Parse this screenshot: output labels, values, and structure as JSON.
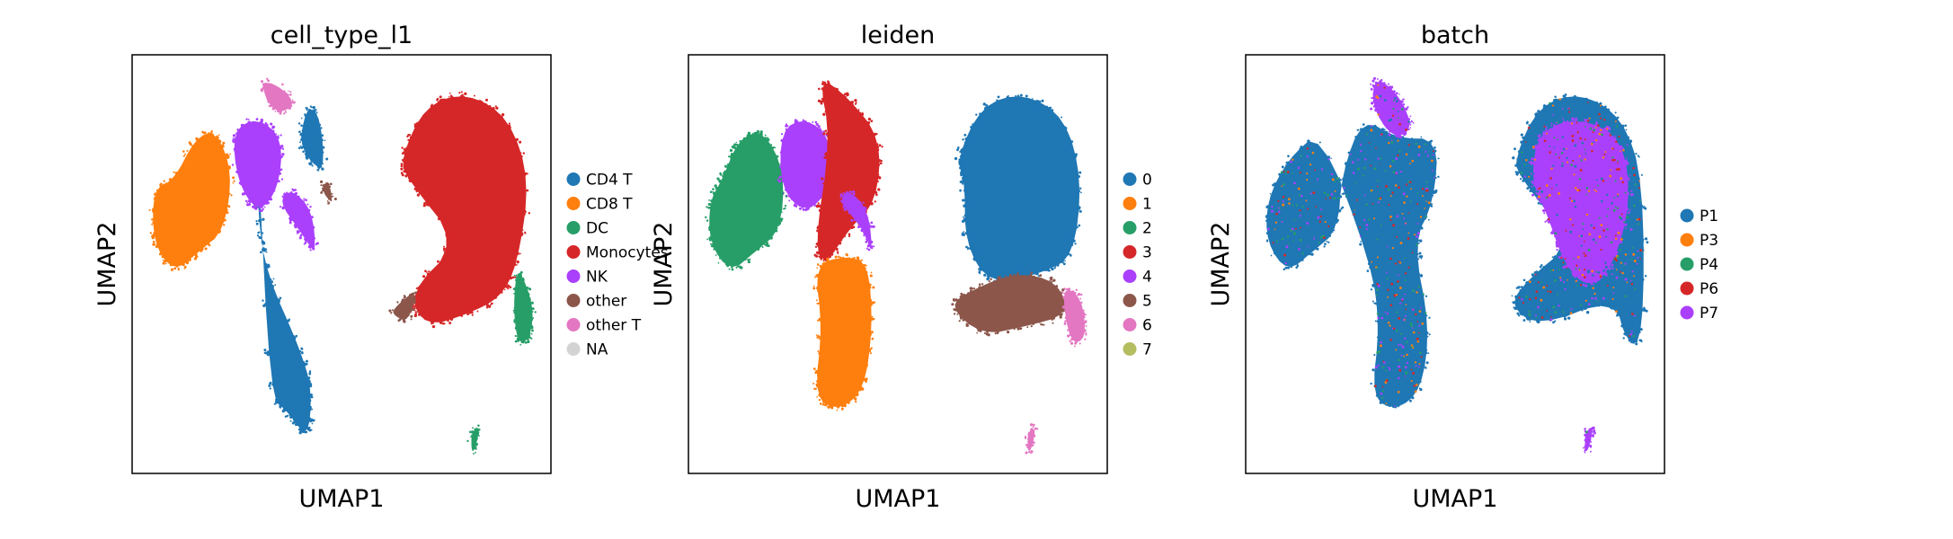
{
  "chart_data": [
    {
      "type": "scatter",
      "title": "cell_type_l1",
      "xlabel": "UMAP1",
      "ylabel": "UMAP2",
      "legend_position": "right",
      "ticks": "none",
      "grid": false,
      "legend": [
        {
          "label": "CD4 T",
          "color": "#1f77b4"
        },
        {
          "label": "CD8 T",
          "color": "#ff7f0e"
        },
        {
          "label": "DC",
          "color": "#279e68"
        },
        {
          "label": "Monocytes",
          "color": "#d62728"
        },
        {
          "label": "NK",
          "color": "#aa40fc"
        },
        {
          "label": "other",
          "color": "#8c564b"
        },
        {
          "label": "other T",
          "color": "#e377c2"
        },
        {
          "label": "NA",
          "color": "#d3d3d3"
        }
      ],
      "clusters": [
        {
          "color": "#1f77b4",
          "points": [
            [
              0.3,
              0.78
            ],
            [
              0.3,
              0.62
            ],
            [
              0.32,
              0.48
            ],
            [
              0.4,
              0.3
            ],
            [
              0.43,
              0.2
            ],
            [
              0.42,
              0.08
            ],
            [
              0.37,
              0.15
            ],
            [
              0.33,
              0.18
            ]
          ]
        },
        {
          "color": "#1f77b4",
          "points": [
            [
              0.42,
              0.75
            ],
            [
              0.46,
              0.72
            ],
            [
              0.45,
              0.85
            ],
            [
              0.42,
              0.88
            ],
            [
              0.4,
              0.8
            ]
          ]
        },
        {
          "color": "#ff7f0e",
          "points": [
            [
              0.05,
              0.55
            ],
            [
              0.1,
              0.48
            ],
            [
              0.16,
              0.53
            ],
            [
              0.22,
              0.58
            ],
            [
              0.24,
              0.72
            ],
            [
              0.2,
              0.82
            ],
            [
              0.15,
              0.8
            ],
            [
              0.1,
              0.7
            ],
            [
              0.05,
              0.68
            ]
          ]
        },
        {
          "color": "#aa40fc",
          "points": [
            [
              0.24,
              0.82
            ],
            [
              0.3,
              0.85
            ],
            [
              0.36,
              0.8
            ],
            [
              0.35,
              0.68
            ],
            [
              0.3,
              0.62
            ],
            [
              0.25,
              0.7
            ]
          ]
        },
        {
          "color": "#aa40fc",
          "points": [
            [
              0.35,
              0.65
            ],
            [
              0.4,
              0.58
            ],
            [
              0.44,
              0.52
            ],
            [
              0.43,
              0.63
            ],
            [
              0.38,
              0.68
            ]
          ]
        },
        {
          "color": "#e377c2",
          "points": [
            [
              0.31,
              0.94
            ],
            [
              0.36,
              0.92
            ],
            [
              0.39,
              0.88
            ],
            [
              0.35,
              0.86
            ],
            [
              0.32,
              0.89
            ]
          ]
        },
        {
          "color": "#8c564b",
          "points": [
            [
              0.45,
              0.68
            ],
            [
              0.48,
              0.64
            ],
            [
              0.47,
              0.7
            ]
          ]
        },
        {
          "color": "#d62728",
          "points": [
            [
              0.64,
              0.75
            ],
            [
              0.7,
              0.88
            ],
            [
              0.8,
              0.91
            ],
            [
              0.9,
              0.85
            ],
            [
              0.95,
              0.7
            ],
            [
              0.92,
              0.5
            ],
            [
              0.88,
              0.42
            ],
            [
              0.8,
              0.38
            ],
            [
              0.7,
              0.35
            ],
            [
              0.66,
              0.43
            ],
            [
              0.78,
              0.55
            ],
            [
              0.66,
              0.7
            ]
          ]
        },
        {
          "color": "#8c564b",
          "points": [
            [
              0.63,
              0.4
            ],
            [
              0.68,
              0.44
            ],
            [
              0.66,
              0.36
            ],
            [
              0.62,
              0.38
            ]
          ]
        },
        {
          "color": "#279e68",
          "points": [
            [
              0.92,
              0.5
            ],
            [
              0.96,
              0.4
            ],
            [
              0.95,
              0.32
            ],
            [
              0.92,
              0.31
            ],
            [
              0.91,
              0.4
            ]
          ]
        },
        {
          "color": "#279e68",
          "points": [
            [
              0.81,
              0.1
            ],
            [
              0.83,
              0.11
            ],
            [
              0.82,
              0.06
            ],
            [
              0.81,
              0.05
            ]
          ]
        }
      ]
    },
    {
      "type": "scatter",
      "title": "leiden",
      "xlabel": "UMAP1",
      "ylabel": "UMAP2",
      "legend_position": "right",
      "ticks": "none",
      "grid": false,
      "legend": [
        {
          "label": "0",
          "color": "#1f77b4"
        },
        {
          "label": "1",
          "color": "#ff7f0e"
        },
        {
          "label": "2",
          "color": "#279e68"
        },
        {
          "label": "3",
          "color": "#d62728"
        },
        {
          "label": "4",
          "color": "#aa40fc"
        },
        {
          "label": "5",
          "color": "#8c564b"
        },
        {
          "label": "6",
          "color": "#e377c2"
        },
        {
          "label": "7",
          "color": "#b5bd61"
        }
      ],
      "clusters": [
        {
          "color": "#1f77b4",
          "points": [
            [
              0.64,
              0.75
            ],
            [
              0.7,
              0.88
            ],
            [
              0.8,
              0.91
            ],
            [
              0.9,
              0.85
            ],
            [
              0.94,
              0.7
            ],
            [
              0.92,
              0.52
            ],
            [
              0.85,
              0.48
            ],
            [
              0.72,
              0.45
            ],
            [
              0.66,
              0.55
            ],
            [
              0.66,
              0.7
            ]
          ]
        },
        {
          "color": "#8c564b",
          "points": [
            [
              0.62,
              0.4
            ],
            [
              0.68,
              0.44
            ],
            [
              0.78,
              0.48
            ],
            [
              0.88,
              0.46
            ],
            [
              0.91,
              0.38
            ],
            [
              0.8,
              0.35
            ],
            [
              0.7,
              0.33
            ]
          ]
        },
        {
          "color": "#e377c2",
          "points": [
            [
              0.89,
              0.45
            ],
            [
              0.94,
              0.42
            ],
            [
              0.95,
              0.32
            ],
            [
              0.91,
              0.31
            ]
          ]
        },
        {
          "color": "#e377c2",
          "points": [
            [
              0.81,
              0.1
            ],
            [
              0.83,
              0.11
            ],
            [
              0.82,
              0.06
            ],
            [
              0.81,
              0.05
            ]
          ]
        },
        {
          "color": "#279e68",
          "points": [
            [
              0.05,
              0.55
            ],
            [
              0.1,
              0.48
            ],
            [
              0.16,
              0.53
            ],
            [
              0.22,
              0.58
            ],
            [
              0.23,
              0.72
            ],
            [
              0.18,
              0.82
            ],
            [
              0.12,
              0.8
            ],
            [
              0.08,
              0.7
            ],
            [
              0.05,
              0.65
            ]
          ]
        },
        {
          "color": "#aa40fc",
          "points": [
            [
              0.22,
              0.82
            ],
            [
              0.28,
              0.85
            ],
            [
              0.34,
              0.8
            ],
            [
              0.34,
              0.68
            ],
            [
              0.28,
              0.62
            ],
            [
              0.22,
              0.68
            ]
          ]
        },
        {
          "color": "#d62728",
          "points": [
            [
              0.31,
              0.95
            ],
            [
              0.38,
              0.9
            ],
            [
              0.46,
              0.8
            ],
            [
              0.45,
              0.65
            ],
            [
              0.38,
              0.58
            ],
            [
              0.33,
              0.5
            ],
            [
              0.3,
              0.54
            ],
            [
              0.34,
              0.8
            ]
          ]
        },
        {
          "color": "#aa40fc",
          "points": [
            [
              0.36,
              0.65
            ],
            [
              0.42,
              0.58
            ],
            [
              0.44,
              0.52
            ],
            [
              0.43,
              0.63
            ],
            [
              0.38,
              0.68
            ]
          ]
        },
        {
          "color": "#ff7f0e",
          "points": [
            [
              0.3,
              0.5
            ],
            [
              0.32,
              0.35
            ],
            [
              0.3,
              0.18
            ],
            [
              0.36,
              0.15
            ],
            [
              0.42,
              0.2
            ],
            [
              0.44,
              0.35
            ],
            [
              0.43,
              0.5
            ],
            [
              0.38,
              0.52
            ]
          ]
        }
      ]
    },
    {
      "type": "scatter",
      "title": "batch",
      "xlabel": "UMAP1",
      "ylabel": "UMAP2",
      "legend_position": "right",
      "ticks": "none",
      "grid": false,
      "legend": [
        {
          "label": "P1",
          "color": "#1f77b4"
        },
        {
          "label": "P3",
          "color": "#ff7f0e"
        },
        {
          "label": "P4",
          "color": "#279e68"
        },
        {
          "label": "P6",
          "color": "#d62728"
        },
        {
          "label": "P7",
          "color": "#aa40fc"
        }
      ],
      "clusters": [
        {
          "color": "#1f77b4",
          "points": [
            [
              0.05,
              0.55
            ],
            [
              0.1,
              0.48
            ],
            [
              0.16,
              0.53
            ],
            [
              0.22,
              0.58
            ],
            [
              0.23,
              0.72
            ],
            [
              0.28,
              0.85
            ],
            [
              0.36,
              0.8
            ],
            [
              0.46,
              0.8
            ],
            [
              0.45,
              0.65
            ],
            [
              0.4,
              0.55
            ],
            [
              0.44,
              0.35
            ],
            [
              0.42,
              0.2
            ],
            [
              0.36,
              0.15
            ],
            [
              0.3,
              0.18
            ],
            [
              0.32,
              0.35
            ],
            [
              0.3,
              0.5
            ],
            [
              0.18,
              0.82
            ],
            [
              0.1,
              0.75
            ],
            [
              0.05,
              0.65
            ]
          ]
        },
        {
          "color": "#aa40fc",
          "points": [
            [
              0.31,
              0.95
            ],
            [
              0.37,
              0.9
            ],
            [
              0.4,
              0.82
            ],
            [
              0.35,
              0.8
            ],
            [
              0.3,
              0.88
            ]
          ]
        },
        {
          "color": "#1f77b4",
          "points": [
            [
              0.64,
              0.75
            ],
            [
              0.7,
              0.88
            ],
            [
              0.8,
              0.91
            ],
            [
              0.9,
              0.85
            ],
            [
              0.95,
              0.7
            ],
            [
              0.95,
              0.32
            ],
            [
              0.91,
              0.31
            ],
            [
              0.88,
              0.42
            ],
            [
              0.7,
              0.35
            ],
            [
              0.63,
              0.4
            ],
            [
              0.67,
              0.46
            ],
            [
              0.78,
              0.55
            ],
            [
              0.66,
              0.7
            ]
          ]
        },
        {
          "color": "#aa40fc",
          "points": [
            [
              0.7,
              0.82
            ],
            [
              0.8,
              0.85
            ],
            [
              0.9,
              0.8
            ],
            [
              0.92,
              0.65
            ],
            [
              0.88,
              0.5
            ],
            [
              0.82,
              0.44
            ],
            [
              0.76,
              0.5
            ],
            [
              0.72,
              0.62
            ],
            [
              0.68,
              0.7
            ]
          ]
        },
        {
          "color": "#aa40fc",
          "points": [
            [
              0.81,
              0.1
            ],
            [
              0.83,
              0.11
            ],
            [
              0.82,
              0.06
            ],
            [
              0.81,
              0.05
            ]
          ]
        }
      ]
    }
  ]
}
